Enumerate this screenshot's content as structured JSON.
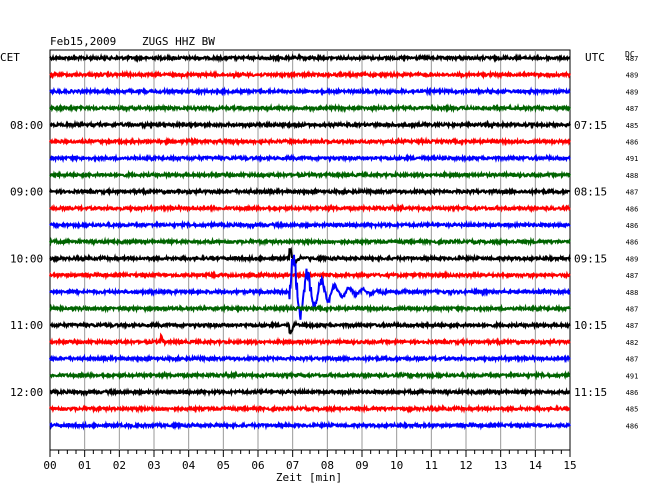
{
  "header": {
    "date": "Feb15,2009",
    "station": "ZUGS HHZ BW",
    "left_tz": "CET",
    "right_tz": "UTC",
    "dc_label": "DC"
  },
  "chart_data": {
    "type": "line",
    "title": "Feb15,2009   ZUGS HHZ BW",
    "xlabel": "Zeit [min]",
    "x_ticks": [
      "00",
      "01",
      "02",
      "03",
      "04",
      "05",
      "06",
      "07",
      "08",
      "09",
      "10",
      "11",
      "12",
      "13",
      "14",
      "15"
    ],
    "xlim": [
      0,
      15
    ],
    "grid": true,
    "colors": [
      "#000000",
      "#ff0000",
      "#0000ff",
      "#006400"
    ],
    "left_hour_labels": [
      {
        "row": 4,
        "text": "08:00"
      },
      {
        "row": 8,
        "text": "09:00"
      },
      {
        "row": 12,
        "text": "10:00"
      },
      {
        "row": 16,
        "text": "11:00"
      },
      {
        "row": 20,
        "text": "12:00"
      }
    ],
    "right_hour_labels": [
      {
        "row": 4,
        "text": "07:15"
      },
      {
        "row": 8,
        "text": "08:15"
      },
      {
        "row": 12,
        "text": "09:15"
      },
      {
        "row": 16,
        "text": "10:15"
      },
      {
        "row": 20,
        "text": "11:15"
      }
    ],
    "dc_values": [
      "487",
      "489",
      "489",
      "487",
      "485",
      "486",
      "491",
      "488",
      "487",
      "486",
      "486",
      "486",
      "489",
      "487",
      "488",
      "487",
      "487",
      "482",
      "487",
      "491",
      "486",
      "485",
      "486"
    ],
    "events": [
      {
        "row": 14,
        "start_min": 6.9,
        "peak_amplitude": 4.5,
        "decay_end_min": 11.0
      },
      {
        "row": 12,
        "start_min": 6.9,
        "peak_amplitude": 1.8,
        "decay_end_min": 7.5
      },
      {
        "row": 16,
        "start_min": 6.9,
        "peak_amplitude": 1.6,
        "decay_end_min": 7.4
      },
      {
        "row": 17,
        "start_min": 3.2,
        "peak_amplitude": 0.8,
        "decay_end_min": 3.6
      }
    ]
  }
}
